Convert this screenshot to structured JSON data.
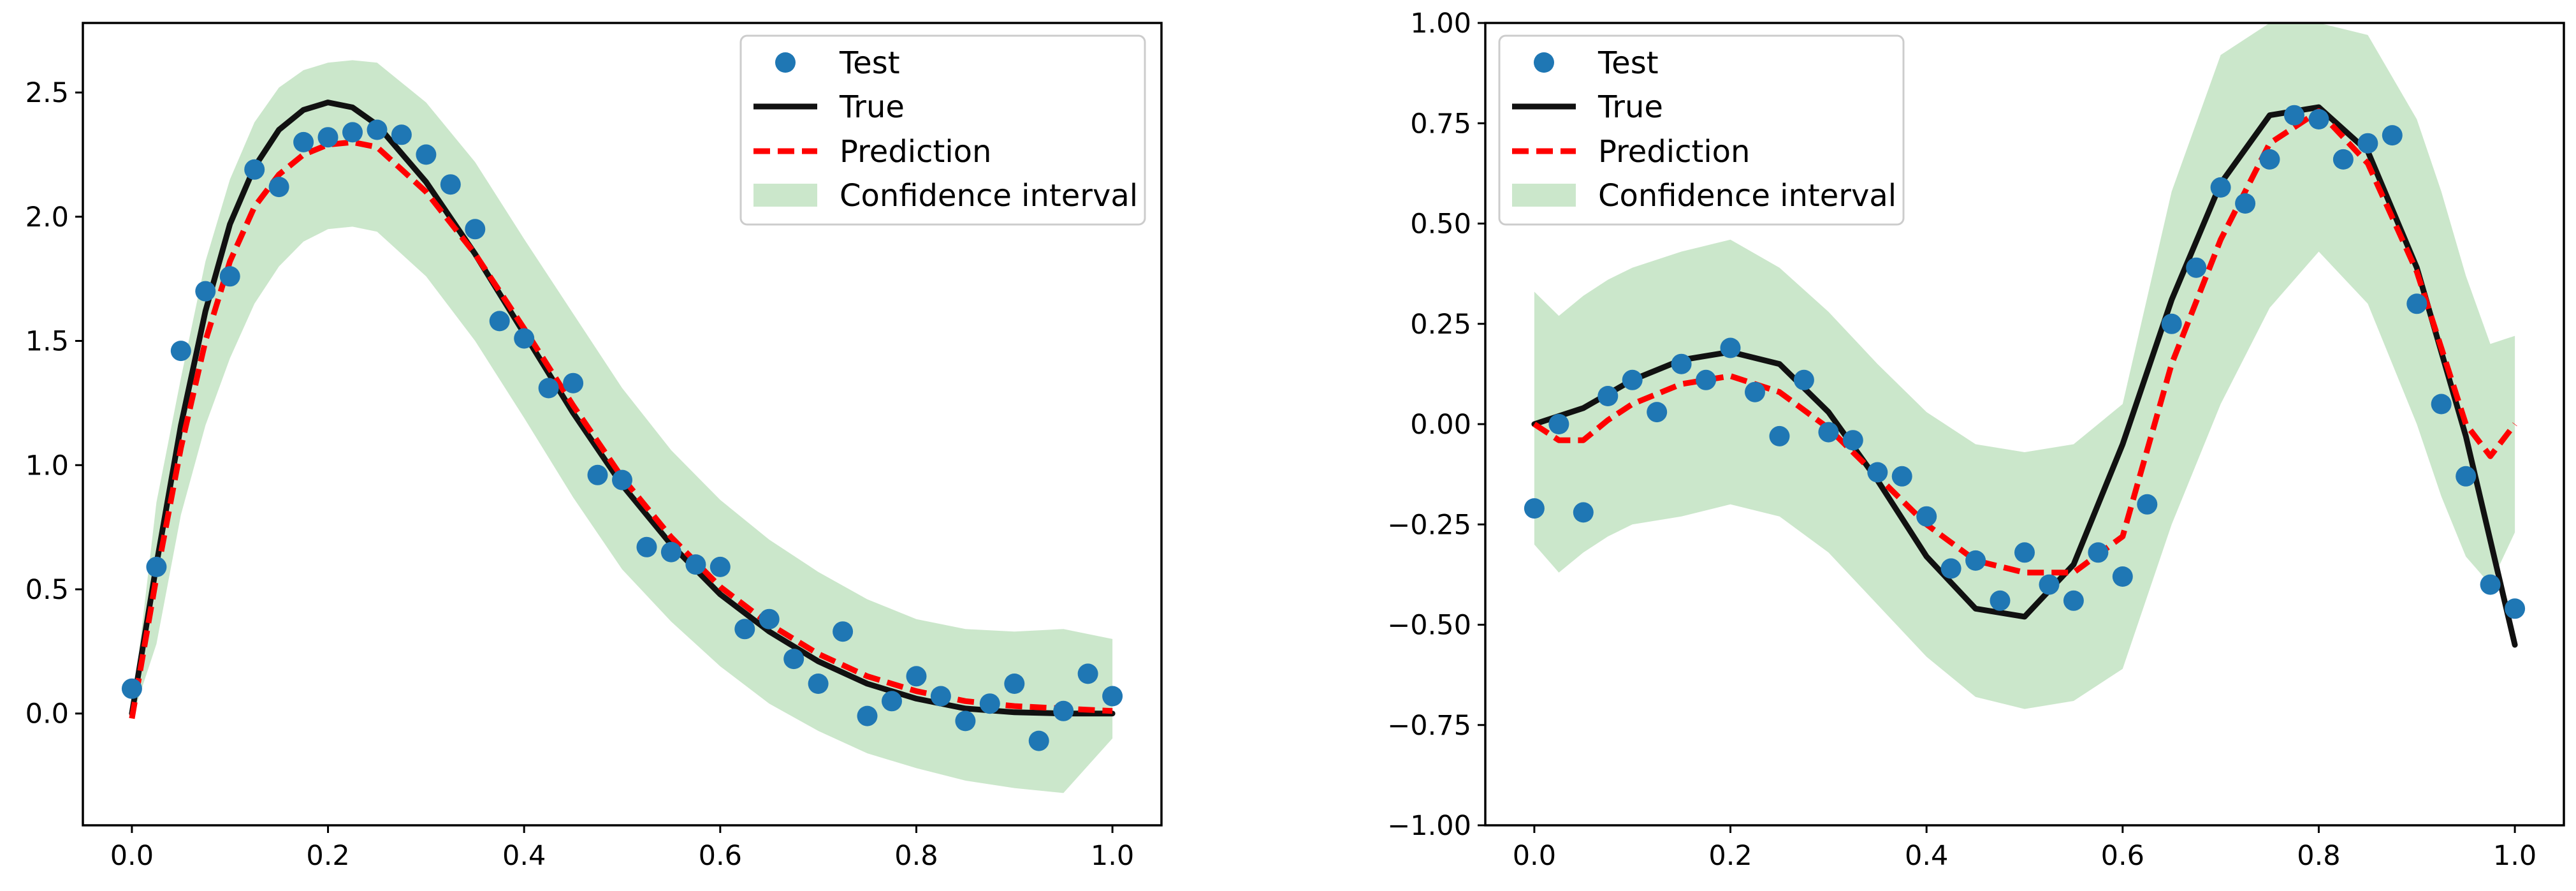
{
  "chart_data": [
    {
      "type": "scatter",
      "panel": "left",
      "xlim": [
        -0.05,
        1.05
      ],
      "ylim": [
        -0.45,
        2.78
      ],
      "xticks": [
        0.0,
        0.2,
        0.4,
        0.6,
        0.8,
        1.0
      ],
      "xtick_labels": [
        "0.0",
        "0.2",
        "0.4",
        "0.6",
        "0.8",
        "1.0"
      ],
      "yticks": [
        0.0,
        0.5,
        1.0,
        1.5,
        2.0,
        2.5
      ],
      "ytick_labels": [
        "0.0",
        "0.5",
        "1.0",
        "1.5",
        "2.0",
        "2.5"
      ],
      "legend": [
        "Test",
        "True",
        "Prediction",
        "Confidence interval"
      ],
      "legend_position": "top-right",
      "colors": {
        "test": "#1f77b4",
        "true": "#111111",
        "prediction": "#ff0000",
        "confidence": "#98d098"
      },
      "test_points": {
        "x": [
          0.0,
          0.025,
          0.05,
          0.075,
          0.1,
          0.125,
          0.15,
          0.175,
          0.2,
          0.225,
          0.25,
          0.275,
          0.3,
          0.325,
          0.35,
          0.375,
          0.4,
          0.425,
          0.45,
          0.475,
          0.5,
          0.525,
          0.55,
          0.575,
          0.6,
          0.625,
          0.65,
          0.675,
          0.7,
          0.725,
          0.75,
          0.775,
          0.8,
          0.825,
          0.85,
          0.875,
          0.9,
          0.925,
          0.95,
          0.975,
          1.0
        ],
        "y": [
          0.1,
          0.59,
          1.46,
          1.7,
          1.76,
          2.19,
          2.12,
          2.3,
          2.32,
          2.34,
          2.35,
          2.33,
          2.25,
          2.13,
          1.95,
          1.58,
          1.51,
          1.31,
          1.33,
          0.96,
          0.94,
          0.67,
          0.65,
          0.6,
          0.59,
          0.34,
          0.38,
          0.22,
          0.12,
          0.33,
          -0.01,
          0.05,
          0.15,
          0.07,
          -0.03,
          0.04,
          0.12,
          -0.11,
          0.01,
          0.16,
          0.07
        ]
      },
      "true_curve": {
        "x": [
          0.0,
          0.025,
          0.05,
          0.075,
          0.1,
          0.125,
          0.15,
          0.175,
          0.2,
          0.225,
          0.25,
          0.3,
          0.35,
          0.4,
          0.45,
          0.5,
          0.55,
          0.6,
          0.65,
          0.7,
          0.75,
          0.8,
          0.85,
          0.9,
          0.95,
          1.0
        ],
        "y": [
          0.0,
          0.6,
          1.16,
          1.62,
          1.97,
          2.2,
          2.35,
          2.43,
          2.46,
          2.44,
          2.37,
          2.14,
          1.85,
          1.53,
          1.21,
          0.92,
          0.68,
          0.48,
          0.33,
          0.21,
          0.12,
          0.06,
          0.02,
          0.005,
          0.0,
          0.0
        ]
      },
      "prediction_curve": {
        "x": [
          0.0,
          0.025,
          0.05,
          0.075,
          0.1,
          0.125,
          0.15,
          0.175,
          0.2,
          0.225,
          0.25,
          0.3,
          0.35,
          0.4,
          0.45,
          0.5,
          0.55,
          0.6,
          0.65,
          0.7,
          0.75,
          0.8,
          0.85,
          0.9,
          0.95,
          1.0
        ],
        "y": [
          -0.02,
          0.55,
          1.07,
          1.5,
          1.82,
          2.04,
          2.17,
          2.25,
          2.29,
          2.3,
          2.28,
          2.1,
          1.85,
          1.55,
          1.24,
          0.95,
          0.71,
          0.51,
          0.36,
          0.24,
          0.15,
          0.09,
          0.05,
          0.03,
          0.02,
          0.01
        ]
      },
      "confidence_interval": {
        "x": [
          0.0,
          0.025,
          0.05,
          0.075,
          0.1,
          0.125,
          0.15,
          0.175,
          0.2,
          0.225,
          0.25,
          0.3,
          0.35,
          0.4,
          0.45,
          0.5,
          0.55,
          0.6,
          0.65,
          0.7,
          0.75,
          0.8,
          0.85,
          0.9,
          0.95,
          1.0
        ],
        "lower": [
          -0.02,
          0.28,
          0.8,
          1.16,
          1.43,
          1.65,
          1.8,
          1.9,
          1.95,
          1.96,
          1.94,
          1.76,
          1.5,
          1.19,
          0.87,
          0.58,
          0.37,
          0.19,
          0.04,
          -0.07,
          -0.16,
          -0.22,
          -0.27,
          -0.3,
          -0.32,
          -0.1
        ],
        "upper": [
          0.0,
          0.85,
          1.35,
          1.82,
          2.15,
          2.38,
          2.52,
          2.59,
          2.62,
          2.63,
          2.62,
          2.46,
          2.22,
          1.91,
          1.61,
          1.31,
          1.06,
          0.86,
          0.7,
          0.57,
          0.46,
          0.38,
          0.34,
          0.33,
          0.34,
          0.3
        ]
      }
    },
    {
      "type": "scatter",
      "panel": "right",
      "xlim": [
        -0.05,
        1.05
      ],
      "ylim": [
        -1.0,
        1.0
      ],
      "xticks": [
        0.0,
        0.2,
        0.4,
        0.6,
        0.8,
        1.0
      ],
      "xtick_labels": [
        "0.0",
        "0.2",
        "0.4",
        "0.6",
        "0.8",
        "1.0"
      ],
      "yticks": [
        -1.0,
        -0.75,
        -0.5,
        -0.25,
        0.0,
        0.25,
        0.5,
        0.75,
        1.0
      ],
      "ytick_labels": [
        "−1.00",
        "−0.75",
        "−0.50",
        "−0.25",
        "0.00",
        "0.25",
        "0.50",
        "0.75",
        "1.00"
      ],
      "legend": [
        "Test",
        "True",
        "Prediction",
        "Confidence interval"
      ],
      "legend_position": "top-left",
      "colors": {
        "test": "#1f77b4",
        "true": "#111111",
        "prediction": "#ff0000",
        "confidence": "#98d098"
      },
      "test_points": {
        "x": [
          0.0,
          0.025,
          0.05,
          0.075,
          0.1,
          0.125,
          0.15,
          0.175,
          0.2,
          0.225,
          0.25,
          0.275,
          0.3,
          0.325,
          0.35,
          0.375,
          0.4,
          0.425,
          0.45,
          0.475,
          0.5,
          0.525,
          0.55,
          0.575,
          0.6,
          0.625,
          0.65,
          0.675,
          0.7,
          0.725,
          0.75,
          0.775,
          0.8,
          0.825,
          0.85,
          0.875,
          0.9,
          0.925,
          0.95,
          0.975,
          1.0
        ],
        "y": [
          -0.21,
          0.0,
          -0.22,
          0.07,
          0.11,
          0.03,
          0.15,
          0.11,
          0.19,
          0.08,
          -0.03,
          0.11,
          -0.02,
          -0.04,
          -0.12,
          -0.13,
          -0.23,
          -0.36,
          -0.34,
          -0.44,
          -0.32,
          -0.4,
          -0.44,
          -0.32,
          -0.38,
          -0.2,
          0.25,
          0.39,
          0.59,
          0.55,
          0.66,
          0.77,
          0.76,
          0.66,
          0.7,
          0.72,
          0.3,
          0.05,
          -0.13,
          -0.4,
          -0.46
        ]
      },
      "true_curve": {
        "x": [
          0.0,
          0.05,
          0.1,
          0.15,
          0.2,
          0.25,
          0.3,
          0.35,
          0.4,
          0.45,
          0.5,
          0.55,
          0.6,
          0.65,
          0.7,
          0.75,
          0.8,
          0.85,
          0.9,
          0.95,
          1.0
        ],
        "y": [
          0.0,
          0.04,
          0.11,
          0.16,
          0.18,
          0.15,
          0.03,
          -0.14,
          -0.33,
          -0.46,
          -0.48,
          -0.35,
          -0.05,
          0.31,
          0.6,
          0.77,
          0.79,
          0.68,
          0.39,
          -0.03,
          -0.55
        ]
      },
      "prediction_curve": {
        "x": [
          0.0,
          0.025,
          0.05,
          0.075,
          0.1,
          0.15,
          0.2,
          0.25,
          0.3,
          0.35,
          0.4,
          0.45,
          0.5,
          0.55,
          0.6,
          0.65,
          0.7,
          0.75,
          0.8,
          0.85,
          0.9,
          0.925,
          0.95,
          0.975,
          1.0
        ],
        "y": [
          0.0,
          -0.04,
          -0.04,
          0.01,
          0.05,
          0.1,
          0.12,
          0.08,
          -0.01,
          -0.13,
          -0.25,
          -0.34,
          -0.37,
          -0.37,
          -0.28,
          0.15,
          0.46,
          0.7,
          0.78,
          0.65,
          0.38,
          0.19,
          0.0,
          -0.08,
          0.0
        ]
      },
      "confidence_interval": {
        "x": [
          0.0,
          0.025,
          0.05,
          0.075,
          0.1,
          0.15,
          0.2,
          0.25,
          0.3,
          0.35,
          0.4,
          0.45,
          0.5,
          0.55,
          0.6,
          0.65,
          0.7,
          0.75,
          0.8,
          0.85,
          0.9,
          0.925,
          0.95,
          0.975,
          1.0
        ],
        "lower": [
          -0.3,
          -0.37,
          -0.32,
          -0.28,
          -0.25,
          -0.23,
          -0.2,
          -0.23,
          -0.32,
          -0.45,
          -0.58,
          -0.68,
          -0.71,
          -0.69,
          -0.61,
          -0.25,
          0.05,
          0.29,
          0.43,
          0.3,
          0.0,
          -0.18,
          -0.33,
          -0.4,
          -0.27
        ],
        "upper": [
          0.33,
          0.27,
          0.32,
          0.36,
          0.39,
          0.43,
          0.46,
          0.39,
          0.28,
          0.15,
          0.03,
          -0.05,
          -0.07,
          -0.05,
          0.05,
          0.58,
          0.92,
          1.0,
          1.0,
          0.97,
          0.76,
          0.58,
          0.37,
          0.2,
          0.22
        ]
      }
    }
  ]
}
